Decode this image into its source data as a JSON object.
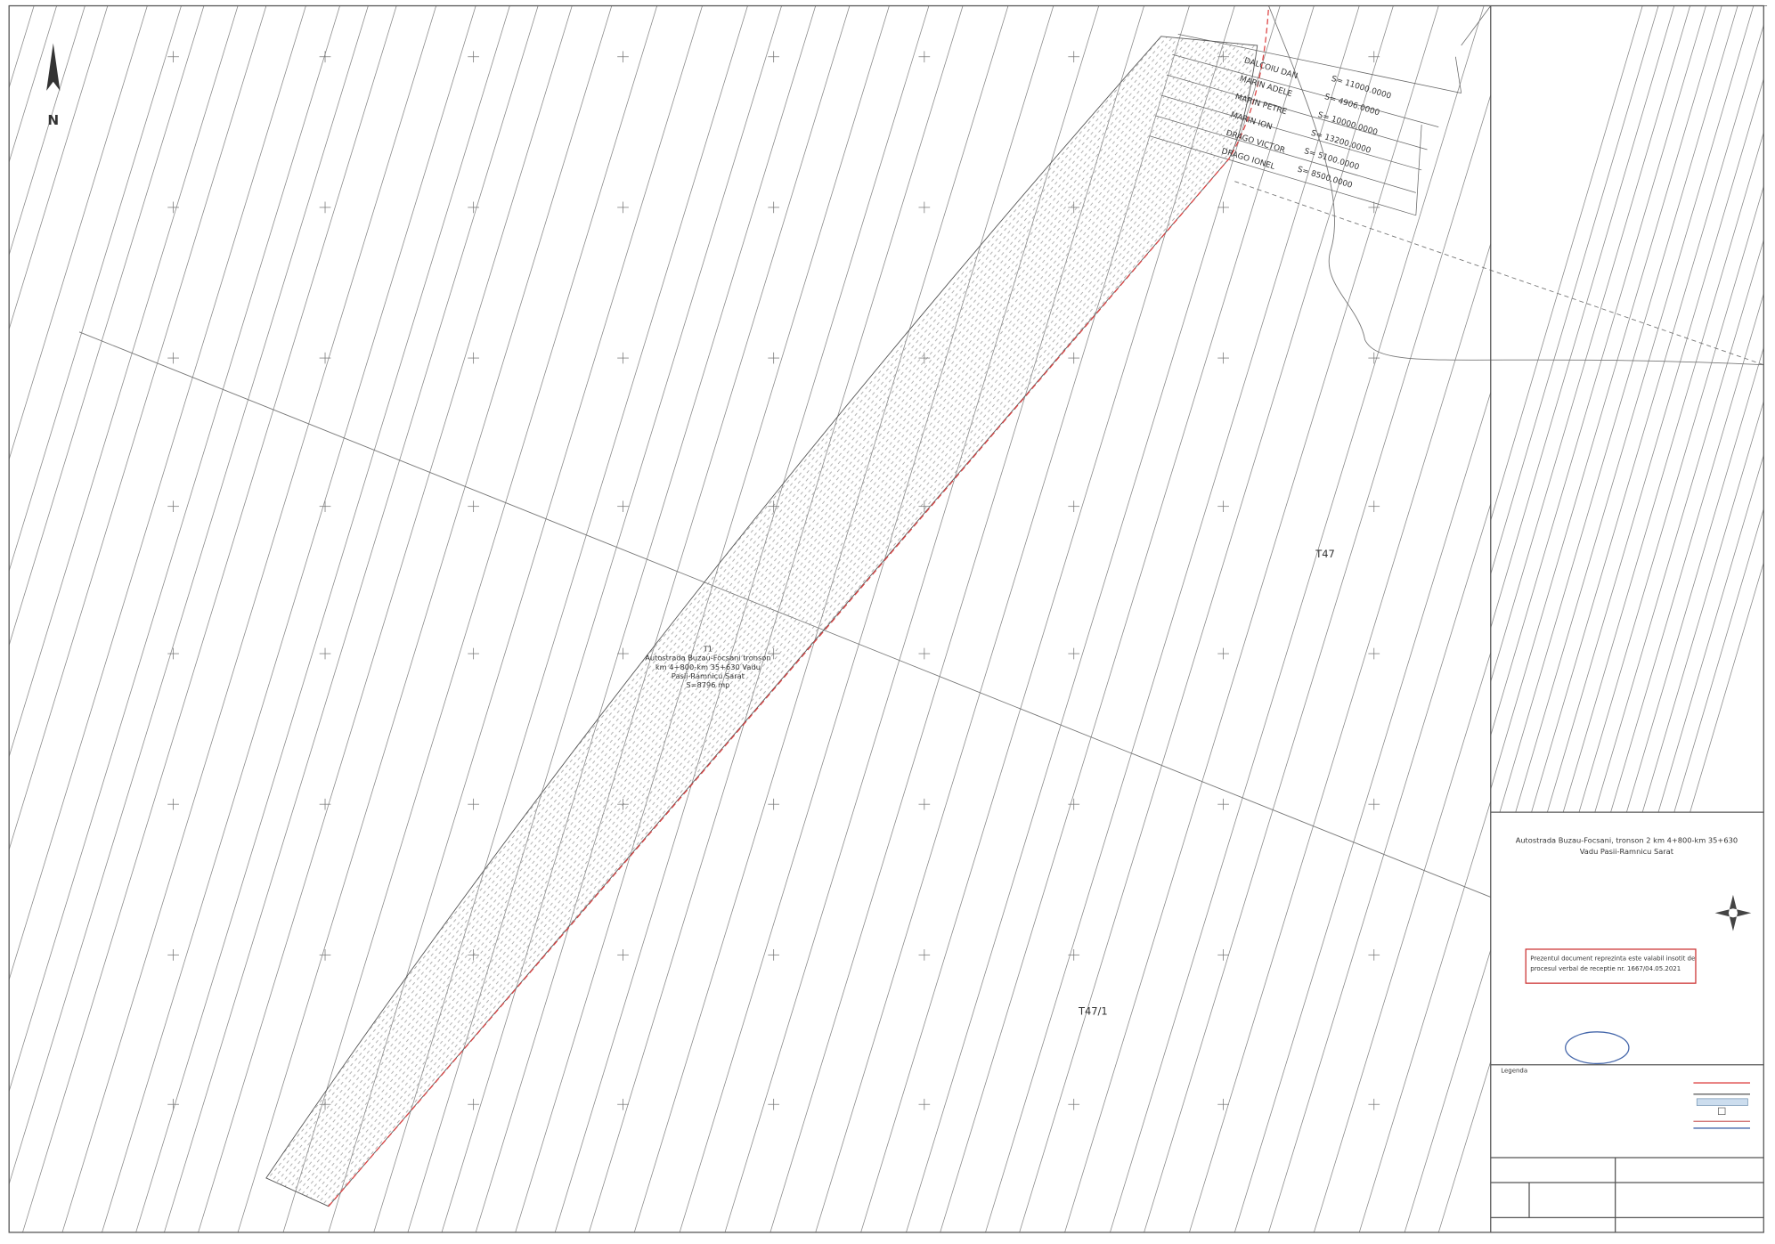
{
  "map": {
    "north_label": "N",
    "parcels": [
      "T47",
      "T47/1"
    ],
    "corridor_label": [
      "T1",
      "Autostrada Buzau-Focsani tronson",
      "km 4+800-km 35+630 Vadu",
      "Pasii-Ramnicu Sarat",
      "S=8796 mp"
    ],
    "owners": [
      {
        "name": "DALCOIU DAN",
        "area": "S= 11000.0000"
      },
      {
        "name": "MARIN ADELE",
        "area": "S= 4906.0000"
      },
      {
        "name": "MARIN PETRE",
        "area": "S= 10000.0000"
      },
      {
        "name": "MARIN ION",
        "area": "S= 13200.0000"
      },
      {
        "name": "DRAGO VICTOR",
        "area": "S= 5100.0000"
      },
      {
        "name": "DRAGO IONEL",
        "area": "S= 8500.0000"
      }
    ],
    "title_block": {
      "title": "Autostrada Buzau-Focsani, tronson 2 km 4+800-km 35+630",
      "subtitle": "Vadu Pasii-Ramnicu Sarat",
      "note": [
        "Prezentul document reprezinta este valabil insotit de",
        "procesul verbal de receptie nr. 1667/04.05.2021"
      ],
      "legend_title": "Legenda"
    }
  }
}
